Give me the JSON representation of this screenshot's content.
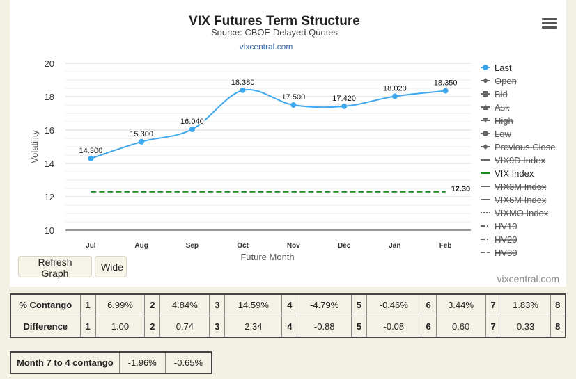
{
  "chart_data": {
    "type": "line",
    "title": "VIX Futures Term Structure",
    "subtitle": "Source: CBOE Delayed Quotes",
    "credit_top": "vixcentral.com",
    "xlabel": "Future Month",
    "ylabel": "Volatility",
    "categories": [
      "Jul",
      "Aug",
      "Sep",
      "Oct",
      "Nov",
      "Dec",
      "Jan",
      "Feb"
    ],
    "ylim": [
      10,
      20
    ],
    "yticks": [
      10,
      12,
      14,
      16,
      18,
      20
    ],
    "grid": true,
    "legend_placement": "right",
    "series": [
      {
        "name": "Last",
        "values": [
          14.3,
          15.3,
          16.04,
          18.38,
          17.5,
          17.42,
          18.02,
          18.35
        ],
        "labels": [
          "14.300",
          "15.300",
          "16.040",
          "18.380",
          "17.500",
          "17.420",
          "18.020",
          "18.350"
        ],
        "color": "#3ea8ee",
        "style": "solid-marker"
      },
      {
        "name": "VIX Index",
        "values": [
          12.3,
          12.3,
          12.3,
          12.3,
          12.3,
          12.3,
          12.3,
          12.3
        ],
        "end_label": "12.30",
        "color": "#1a8a1a",
        "style": "dashed"
      }
    ],
    "legend": [
      {
        "name": "Last",
        "active": true,
        "symbol": "circle",
        "color": "#3ea8ee"
      },
      {
        "name": "Open",
        "active": false,
        "symbol": "diamond"
      },
      {
        "name": "Bid",
        "active": false,
        "symbol": "square"
      },
      {
        "name": "Ask",
        "active": false,
        "symbol": "triangle"
      },
      {
        "name": "High",
        "active": false,
        "symbol": "triangle-down"
      },
      {
        "name": "Low",
        "active": false,
        "symbol": "circle"
      },
      {
        "name": "Previous Close",
        "active": false,
        "symbol": "diamond"
      },
      {
        "name": "VIX9D Index",
        "active": false,
        "symbol": "line"
      },
      {
        "name": "VIX Index",
        "active": true,
        "symbol": "line",
        "color": "#1a8a1a"
      },
      {
        "name": "VIX3M Index",
        "active": false,
        "symbol": "line"
      },
      {
        "name": "VIX6M Index",
        "active": false,
        "symbol": "line"
      },
      {
        "name": "VIXMO Index",
        "active": false,
        "symbol": "dotted"
      },
      {
        "name": "HV10",
        "active": false,
        "symbol": "dashdot"
      },
      {
        "name": "HV20",
        "active": false,
        "symbol": "dashdot"
      },
      {
        "name": "HV30",
        "active": false,
        "symbol": "dashed"
      }
    ]
  },
  "buttons": {
    "refresh": "Refresh Graph",
    "wide": "Wide"
  },
  "watermark": "vixcentral.com",
  "table_main": {
    "contango_label": "% Contango",
    "contango": [
      {
        "n": "1",
        "v": "6.99%"
      },
      {
        "n": "2",
        "v": "4.84%"
      },
      {
        "n": "3",
        "v": "14.59%"
      },
      {
        "n": "4",
        "v": "-4.79%"
      },
      {
        "n": "5",
        "v": "-0.46%"
      },
      {
        "n": "6",
        "v": "3.44%"
      },
      {
        "n": "7",
        "v": "1.83%"
      },
      {
        "n": "8",
        "v": ""
      }
    ],
    "difference_label": "Difference",
    "difference": [
      {
        "n": "1",
        "v": "1.00"
      },
      {
        "n": "2",
        "v": "0.74"
      },
      {
        "n": "3",
        "v": "2.34"
      },
      {
        "n": "4",
        "v": "-0.88"
      },
      {
        "n": "5",
        "v": "-0.08"
      },
      {
        "n": "6",
        "v": "0.60"
      },
      {
        "n": "7",
        "v": "0.33"
      },
      {
        "n": "8",
        "v": ""
      }
    ]
  },
  "table_small": {
    "label": "Month 7 to 4 contango",
    "v1": "-1.96%",
    "v2": "-0.65%"
  }
}
